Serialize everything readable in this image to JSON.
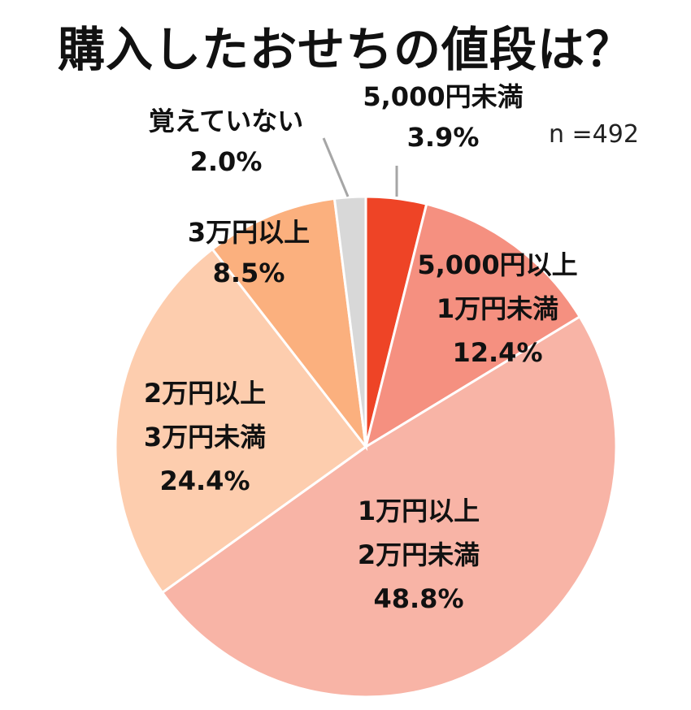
{
  "chart_data": {
    "type": "pie",
    "title": "購入したおせちの値段は？",
    "sample_size": "n =492",
    "slices": [
      {
        "label_lines": [
          "5,000円未満",
          "3.9%"
        ],
        "value": 3.9,
        "color": "#EE4426"
      },
      {
        "label_lines": [
          "5,000円以上",
          "1万円未満",
          "12.4%"
        ],
        "value": 12.4,
        "color": "#F59080"
      },
      {
        "label_lines": [
          "1万円以上",
          "2万円未満",
          "48.8%"
        ],
        "value": 48.8,
        "color": "#F8B4A6"
      },
      {
        "label_lines": [
          "2万円以上",
          "3万円未満",
          "24.4%"
        ],
        "value": 24.4,
        "color": "#FDCDAE"
      },
      {
        "label_lines": [
          "3万円以上",
          "8.5%"
        ],
        "value": 8.5,
        "color": "#FBB07E"
      },
      {
        "label_lines": [
          "覚えていない",
          "2.0%"
        ],
        "value": 2.0,
        "color": "#D8D8D8"
      }
    ]
  }
}
